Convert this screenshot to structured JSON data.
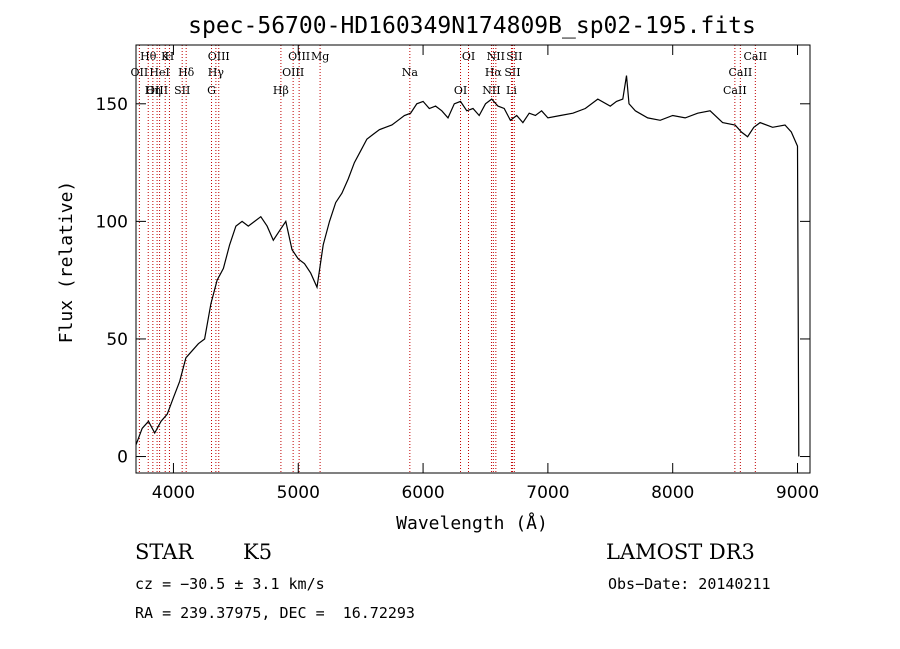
{
  "chart_data": {
    "type": "line",
    "title": "spec-56700-HD160349N174809B_sp02-195.fits",
    "xlabel": "Wavelength (Å)",
    "ylabel": "Flux (relative)",
    "xlim": [
      3700,
      9100
    ],
    "ylim": [
      -7,
      175
    ],
    "xticks": [
      4000,
      5000,
      6000,
      7000,
      8000,
      9000
    ],
    "yticks": [
      0,
      50,
      100,
      150
    ],
    "grid": false,
    "series": [
      {
        "x": [
          3700,
          3750,
          3800,
          3850,
          3900,
          3950,
          4000,
          4050,
          4100,
          4150,
          4200,
          4250,
          4300,
          4350,
          4400,
          4450,
          4500,
          4550,
          4600,
          4650,
          4700,
          4750,
          4800,
          4850,
          4900,
          4950,
          5000,
          5050,
          5100,
          5150,
          5200,
          5250,
          5300,
          5350,
          5400,
          5450,
          5500,
          5550,
          5600,
          5650,
          5700,
          5750,
          5800,
          5850,
          5900,
          5950,
          6000,
          6050,
          6100,
          6150,
          6200,
          6250,
          6300,
          6350,
          6400,
          6450,
          6500,
          6550,
          6600,
          6650,
          6700,
          6750,
          6800,
          6850,
          6900,
          6950,
          7000,
          7100,
          7200,
          7300,
          7400,
          7500,
          7550,
          7600,
          7630,
          7650,
          7700,
          7800,
          7900,
          8000,
          8100,
          8200,
          8300,
          8400,
          8500,
          8550,
          8600,
          8650,
          8700,
          8800,
          8900,
          8950,
          9000,
          9010
        ],
        "y": [
          5,
          12,
          15,
          10,
          15,
          18,
          25,
          32,
          42,
          45,
          48,
          50,
          65,
          75,
          80,
          90,
          98,
          100,
          98,
          100,
          102,
          98,
          92,
          96,
          100,
          88,
          84,
          82,
          78,
          72,
          90,
          100,
          108,
          112,
          118,
          125,
          130,
          135,
          137,
          139,
          140,
          141,
          143,
          145,
          146,
          150,
          151,
          148,
          149,
          147,
          144,
          150,
          151,
          147,
          148,
          145,
          150,
          152,
          149,
          148,
          143,
          145,
          142,
          146,
          145,
          147,
          144,
          145,
          146,
          148,
          152,
          149,
          151,
          152,
          162,
          150,
          147,
          144,
          143,
          145,
          144,
          146,
          147,
          142,
          141,
          138,
          136,
          140,
          142,
          140,
          141,
          138,
          132,
          0
        ]
      }
    ],
    "line_markers": [
      {
        "label": "Hθ",
        "x": 3798
      },
      {
        "label": "OII",
        "x": 3727
      },
      {
        "label": "OIII",
        "x": 3869
      },
      {
        "label": "K",
        "x": 3934
      },
      {
        "label": "HeI",
        "x": 3889
      },
      {
        "label": "Hη",
        "x": 3835
      },
      {
        "label": "H",
        "x": 3968
      },
      {
        "label": "Hδ",
        "x": 4102
      },
      {
        "label": "SII",
        "x": 4070
      },
      {
        "label": "OIII",
        "x": 4363
      },
      {
        "label": "Hγ",
        "x": 4340
      },
      {
        "label": "G",
        "x": 4305
      },
      {
        "label": "OIII",
        "x": 5007
      },
      {
        "label": "OIII",
        "x": 4959
      },
      {
        "label": "Hβ",
        "x": 4861
      },
      {
        "label": "Mg",
        "x": 5175
      },
      {
        "label": "Na",
        "x": 5894
      },
      {
        "label": "OI",
        "x": 6300
      },
      {
        "label": "OI",
        "x": 6364
      },
      {
        "label": "Hα",
        "x": 6563
      },
      {
        "label": "NII",
        "x": 6548
      },
      {
        "label": "NII",
        "x": 6583
      },
      {
        "label": "SII",
        "x": 6716
      },
      {
        "label": "Li",
        "x": 6708
      },
      {
        "label": "SII",
        "x": 6731
      },
      {
        "label": "CaII",
        "x": 8542
      },
      {
        "label": "CaII",
        "x": 8498
      },
      {
        "label": "CaII",
        "x": 8662
      }
    ]
  },
  "info": {
    "object_type": "STAR",
    "subclass": "K5",
    "survey": "LAMOST DR3",
    "cz": "cz = −30.5 ± 3.1 km/s",
    "obs_date": "Obs−Date: 20140211",
    "coords": "RA = 239.37975, DEC =  16.72293"
  }
}
